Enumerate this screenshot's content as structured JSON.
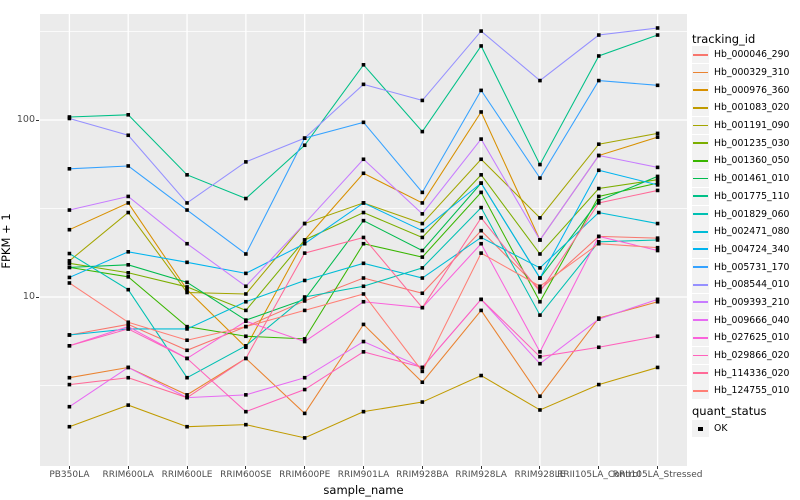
{
  "figure": {
    "background": "#FFFFFF",
    "panel_background": "#EBEBEB",
    "gridline_color": "#FFFFFF",
    "tick_label_color": "#4D4D4D",
    "point_color": "#000000"
  },
  "chart_data": {
    "type": "line",
    "xlabel": "sample_name",
    "ylabel": "FPKM + 1",
    "y_scale": "log10",
    "ylim": [
      1.1,
      420
    ],
    "y_ticks": [
      10,
      100
    ],
    "y_minor_gridlines": [
      3.162,
      31.62,
      316.2
    ],
    "grid": "white-on-gray",
    "legend_position": "right",
    "point_shape": "filled-black-square",
    "categories": [
      "PB350LA",
      "RRIM600LA",
      "RRIM600LE",
      "RRIM600SE",
      "RRIM600PE",
      "RRIM901LA",
      "RRIM928BA",
      "RRIM928LA",
      "RRIM928LE",
      "RRII105LA_Control",
      "RRII105LA_Stressed"
    ],
    "series": [
      {
        "name": "Hb_000046_290",
        "color": "#F8766D",
        "values": [
          6.1,
          7.0,
          5.0,
          6.8,
          9.5,
          12.8,
          10.5,
          23.7,
          11.0,
          22.0,
          21.5
        ]
      },
      {
        "name": "Hb_000329_310",
        "color": "#EA8331",
        "values": [
          3.5,
          4.0,
          2.8,
          4.5,
          2.2,
          7.0,
          3.3,
          8.4,
          2.75,
          7.6,
          9.4
        ]
      },
      {
        "name": "Hb_000976_360",
        "color": "#D89000",
        "values": [
          24,
          34,
          11,
          5.2,
          21,
          50,
          34,
          111,
          21,
          63,
          80
        ]
      },
      {
        "name": "Hb_001083_020",
        "color": "#C09B00",
        "values": [
          1.85,
          2.45,
          1.85,
          1.9,
          1.6,
          2.25,
          2.55,
          3.6,
          2.3,
          3.2,
          4.0
        ]
      },
      {
        "name": "Hb_001191_090",
        "color": "#A3A500",
        "values": [
          16,
          30,
          10.6,
          10.4,
          26,
          34,
          26,
          60,
          28,
          73,
          84
        ]
      },
      {
        "name": "Hb_001235_030",
        "color": "#7CAE00",
        "values": [
          15.5,
          13.7,
          11.4,
          8.4,
          21,
          30,
          21.7,
          49,
          17.5,
          41,
          46
        ]
      },
      {
        "name": "Hb_001360_050",
        "color": "#39B600",
        "values": [
          14.7,
          13.0,
          6.8,
          6.0,
          5.8,
          20,
          16.8,
          39,
          9.4,
          37,
          44
        ]
      },
      {
        "name": "Hb_001461_010",
        "color": "#00BB4E",
        "values": [
          14.7,
          15.2,
          12.1,
          7.4,
          9.7,
          27,
          18.3,
          44,
          12.8,
          35,
          48
        ]
      },
      {
        "name": "Hb_001775_110",
        "color": "#00C087",
        "values": [
          104,
          107,
          49,
          36,
          72,
          205,
          86,
          262,
          56,
          230,
          302
        ]
      },
      {
        "name": "Hb_001829_060",
        "color": "#00C0B2",
        "values": [
          17.6,
          11.0,
          3.5,
          5.3,
          10,
          11.5,
          14.6,
          32,
          7.9,
          20.5,
          21
        ]
      },
      {
        "name": "Hb_002471_080",
        "color": "#00BCD6",
        "values": [
          6.1,
          6.6,
          6.6,
          9.4,
          12.4,
          15.5,
          12.8,
          21.7,
          14.6,
          30,
          26
        ]
      },
      {
        "name": "Hb_004724_340",
        "color": "#00B4EF",
        "values": [
          12.9,
          18,
          15.7,
          13.6,
          20,
          34,
          23.7,
          44,
          12.8,
          52,
          43
        ]
      },
      {
        "name": "Hb_005731_170",
        "color": "#35A2FF",
        "values": [
          53,
          55,
          31,
          17.5,
          79,
          97,
          39,
          147,
          47,
          167,
          157
        ]
      },
      {
        "name": "Hb_008544_010",
        "color": "#9590FF",
        "values": [
          102,
          82,
          34,
          58,
          79,
          159,
          129,
          318,
          167,
          302,
          331
        ]
      },
      {
        "name": "Hb_009393_210",
        "color": "#C77CFF",
        "values": [
          31,
          37,
          20,
          11.5,
          26,
          60,
          29.5,
          78,
          21,
          63,
          54
        ]
      },
      {
        "name": "Hb_009666_040",
        "color": "#E76BF3",
        "values": [
          2.4,
          4.0,
          2.7,
          2.8,
          3.5,
          5.6,
          4.0,
          9.7,
          4.2,
          7.5,
          9.7
        ]
      },
      {
        "name": "Hb_027625_010",
        "color": "#FA62DB",
        "values": [
          5.3,
          6.8,
          4.5,
          7.3,
          5.6,
          9.4,
          8.7,
          20,
          4.9,
          22,
          18.3
        ]
      },
      {
        "name": "Hb_029866_020",
        "color": "#FF62BC",
        "values": [
          5.3,
          6.6,
          4.5,
          2.25,
          3.0,
          4.9,
          4.0,
          9.7,
          4.6,
          5.2,
          6.0
        ]
      },
      {
        "name": "Hb_114336_020",
        "color": "#FF6A98",
        "values": [
          3.2,
          3.5,
          2.7,
          4.5,
          17.7,
          21.7,
          8.7,
          28,
          10.7,
          34,
          40
        ]
      },
      {
        "name": "Hb_124755_010",
        "color": "#FF7F76",
        "values": [
          12,
          7.2,
          5.7,
          6.8,
          8.4,
          10.4,
          3.8,
          17.7,
          11.5,
          20,
          19
        ]
      }
    ]
  },
  "legend": {
    "title": "tracking_id"
  },
  "quant_legend": {
    "title": "quant_status",
    "items": [
      {
        "label": "OK"
      }
    ]
  }
}
